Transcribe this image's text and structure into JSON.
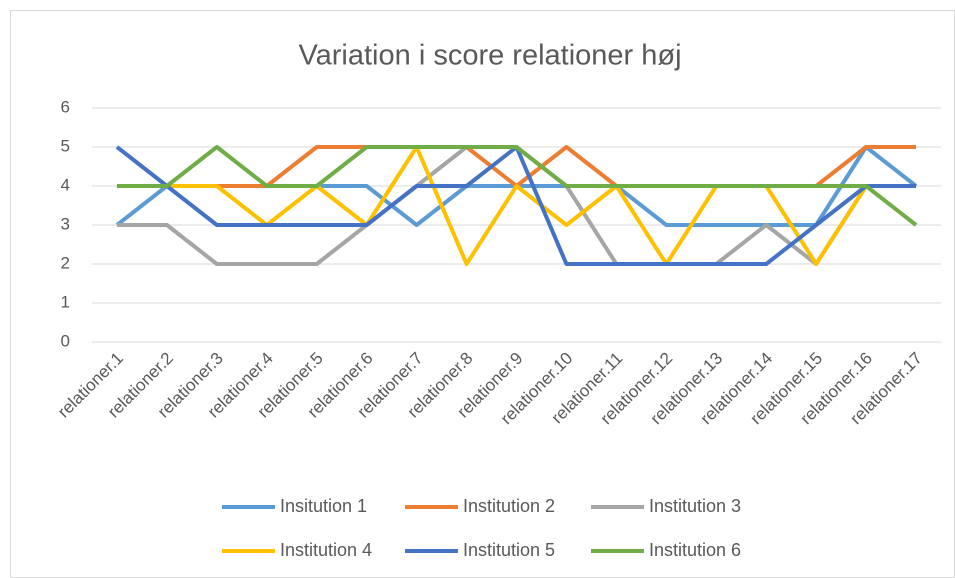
{
  "chart_data": {
    "type": "line",
    "title": "Variation i score relationer høj",
    "categories": [
      "relationer.1",
      "relationer.2",
      "relationer.3",
      "relationer.4",
      "relationer.5",
      "relationer.6",
      "relationer.7",
      "relationer.8",
      "relationer.9",
      "relationer.10",
      "relationer.11",
      "relationer.12",
      "relationer.13",
      "relationer.14",
      "relationer.15",
      "relationer.16",
      "relationer.17"
    ],
    "series": [
      {
        "name": "Insitution 1",
        "color": "#5b9bd5",
        "values": [
          3,
          4,
          4,
          4,
          4,
          4,
          3,
          4,
          4,
          4,
          4,
          3,
          3,
          3,
          3,
          5,
          4
        ]
      },
      {
        "name": "Institution 2",
        "color": "#ed7d31",
        "values": [
          4,
          4,
          4,
          4,
          5,
          5,
          5,
          5,
          4,
          5,
          4,
          4,
          4,
          4,
          4,
          5,
          5
        ]
      },
      {
        "name": "Institution 3",
        "color": "#a5a5a5",
        "values": [
          3,
          3,
          2,
          2,
          2,
          3,
          4,
          5,
          5,
          4,
          2,
          2,
          2,
          3,
          2,
          4,
          4
        ]
      },
      {
        "name": "Institution 4",
        "color": "#ffc000",
        "values": [
          4,
          4,
          4,
          3,
          4,
          3,
          5,
          2,
          4,
          3,
          4,
          2,
          4,
          4,
          2,
          4,
          4
        ]
      },
      {
        "name": "Institution 5",
        "color": "#4472c4",
        "values": [
          5,
          4,
          3,
          3,
          3,
          3,
          4,
          4,
          5,
          2,
          2,
          2,
          2,
          2,
          3,
          4,
          4
        ]
      },
      {
        "name": "Institution 6",
        "color": "#70ad47",
        "values": [
          4,
          4,
          5,
          4,
          4,
          5,
          5,
          5,
          5,
          4,
          4,
          4,
          4,
          4,
          4,
          4,
          3
        ]
      }
    ],
    "ylim": [
      0,
      6
    ],
    "yticks": [
      0,
      1,
      2,
      3,
      4,
      5,
      6
    ],
    "grid": true,
    "legend": "bottom"
  }
}
